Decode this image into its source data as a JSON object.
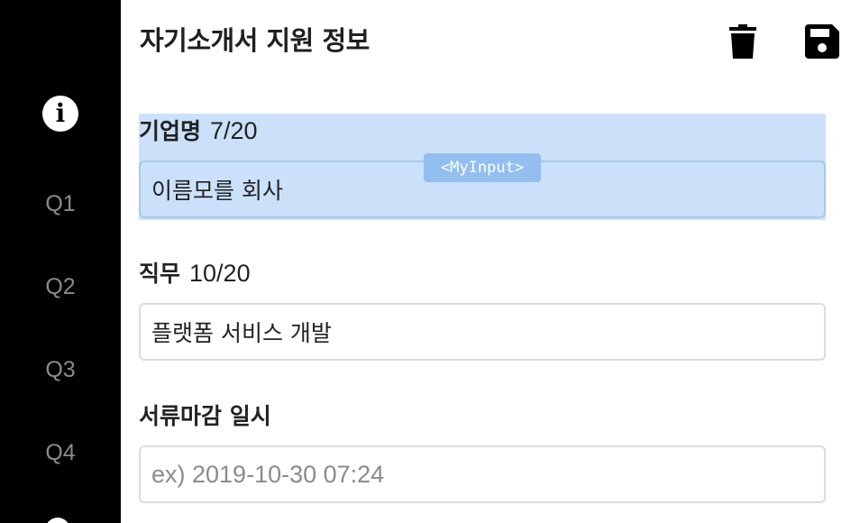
{
  "header": {
    "title": "자기소개서 지원 정보",
    "delete_icon": "trash-icon",
    "save_icon": "floppy-disk-icon"
  },
  "sidebar": {
    "info_icon": "info-icon",
    "items": [
      {
        "label": "Q1"
      },
      {
        "label": "Q2"
      },
      {
        "label": "Q3"
      },
      {
        "label": "Q4"
      }
    ]
  },
  "form": {
    "company": {
      "label": "기업명",
      "count": "7/20",
      "value": "이름모를 회사",
      "component_tag": "<MyInput>"
    },
    "job": {
      "label": "직무",
      "count": "10/20",
      "value": "플랫폼 서비스 개발"
    },
    "deadline": {
      "label": "서류마감 일시",
      "placeholder": "ex) 2019-10-30 07:24"
    }
  },
  "colors": {
    "sidebar_bg": "#000000",
    "highlight": "#a0c8f5",
    "tag_bg": "#92bff0"
  }
}
